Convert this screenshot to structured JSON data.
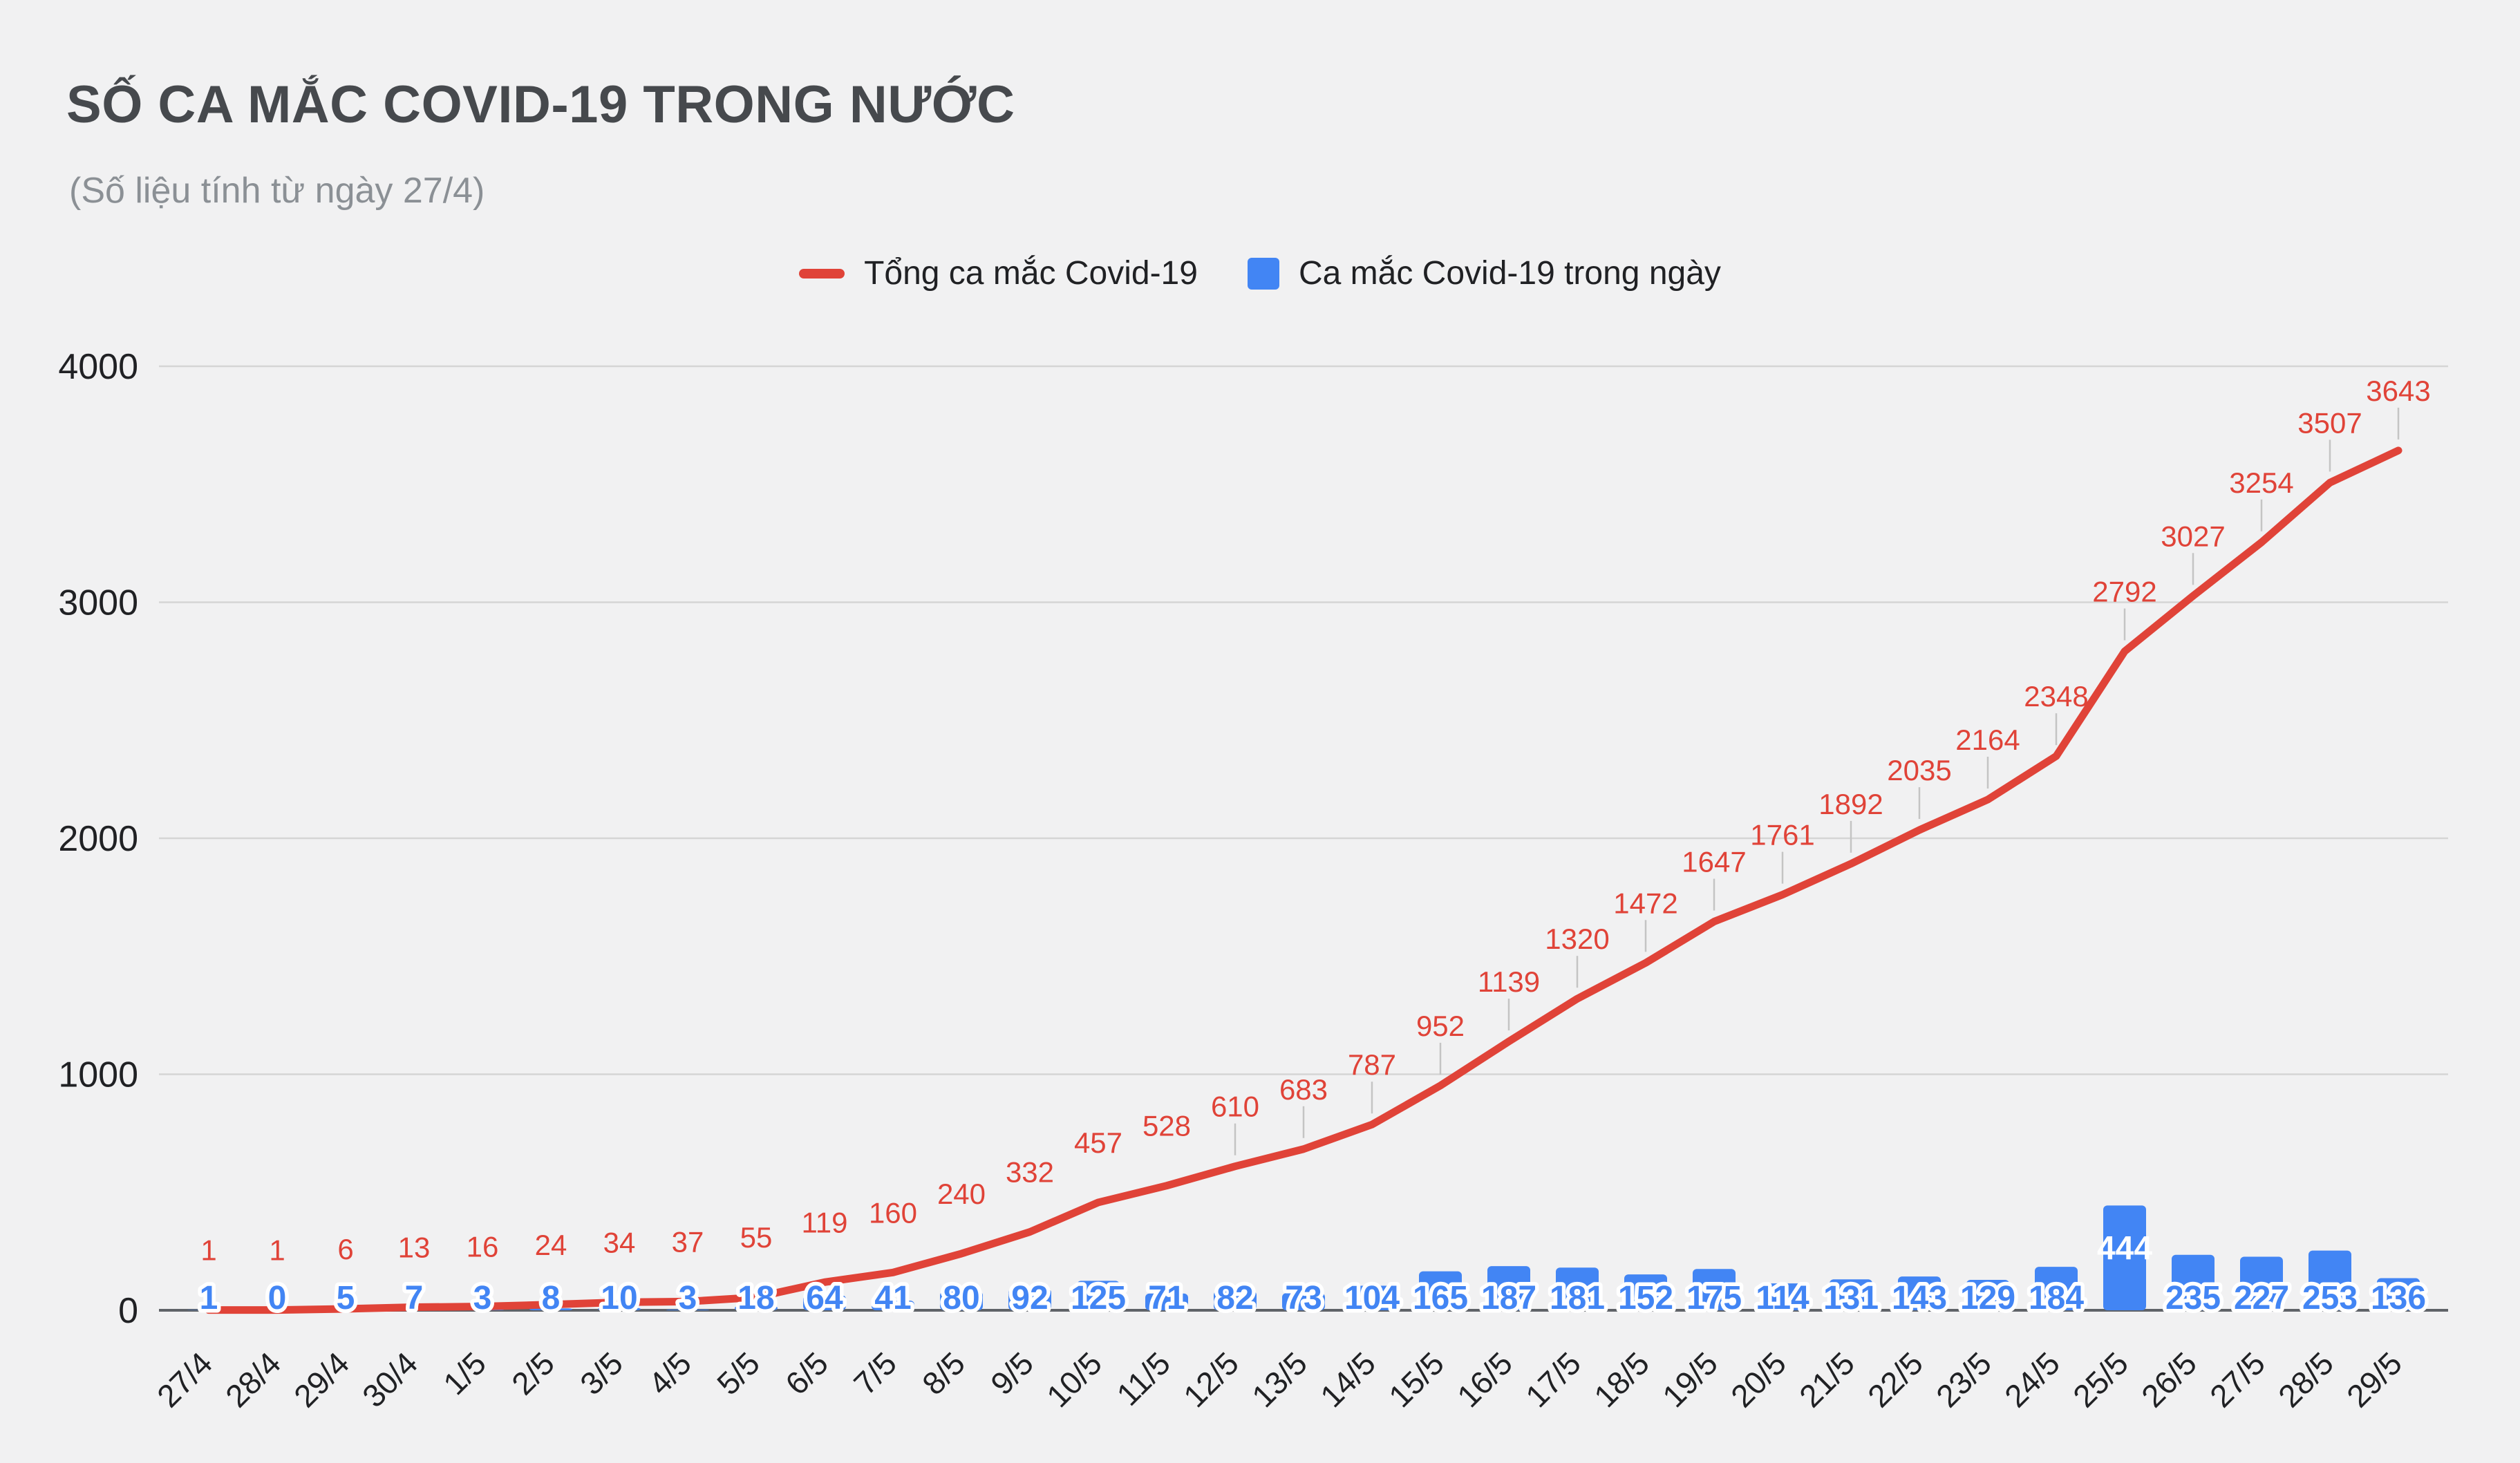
{
  "page": {
    "title": "SỐ CA MẮC COVID-19 TRONG NƯỚC",
    "subtitle": "(Số liệu tính từ ngày 27/4)"
  },
  "legend": [
    {
      "label": "Tổng ca mắc Covid-19",
      "type": "line",
      "color": "#e04338"
    },
    {
      "label": "Ca mắc Covid-19 trong ngày",
      "type": "square",
      "color": "#4285f4"
    }
  ],
  "colors": {
    "background": "#f1f1f2",
    "line": "#e04338",
    "bar": "#4285f4",
    "grid": "#d5d5d5",
    "baseline": "#5f6368",
    "axis_text": "#202124",
    "leader": "#c4c4c4",
    "title": "#46494d",
    "subtitle": "#8b9095"
  },
  "chart_data": {
    "type": "combo",
    "title": "SỐ CA MẮC COVID-19 TRONG NƯỚC",
    "subtitle": "(Số liệu tính từ ngày 27/4)",
    "categories": [
      "27/4",
      "28/4",
      "29/4",
      "30/4",
      "1/5",
      "2/5",
      "3/5",
      "4/5",
      "5/5",
      "6/5",
      "7/5",
      "8/5",
      "9/5",
      "10/5",
      "11/5",
      "12/5",
      "13/5",
      "14/5",
      "15/5",
      "16/5",
      "17/5",
      "18/5",
      "19/5",
      "20/5",
      "21/5",
      "22/5",
      "23/5",
      "24/5",
      "25/5",
      "26/5",
      "27/5",
      "28/5",
      "29/5"
    ],
    "series": [
      {
        "name": "Tổng ca mắc Covid-19",
        "type": "line",
        "color": "#e04338",
        "values": [
          1,
          1,
          6,
          13,
          16,
          24,
          34,
          37,
          55,
          119,
          160,
          240,
          332,
          457,
          528,
          610,
          683,
          787,
          952,
          1139,
          1320,
          1472,
          1647,
          1761,
          1892,
          2035,
          2164,
          2348,
          2792,
          3027,
          3254,
          3507,
          3643
        ]
      },
      {
        "name": "Ca mắc Covid-19 trong ngày",
        "type": "bar",
        "color": "#4285f4",
        "values": [
          1,
          0,
          5,
          7,
          3,
          8,
          10,
          3,
          18,
          64,
          41,
          80,
          92,
          125,
          71,
          82,
          73,
          104,
          165,
          187,
          181,
          152,
          175,
          114,
          131,
          143,
          129,
          184,
          444,
          235,
          227,
          253,
          136
        ]
      }
    ],
    "xlabel": "",
    "ylabel": "",
    "ylim": [
      0,
      4000
    ],
    "yticks": [
      0,
      1000,
      2000,
      3000,
      4000
    ],
    "grid": true,
    "legend_position": "top"
  }
}
